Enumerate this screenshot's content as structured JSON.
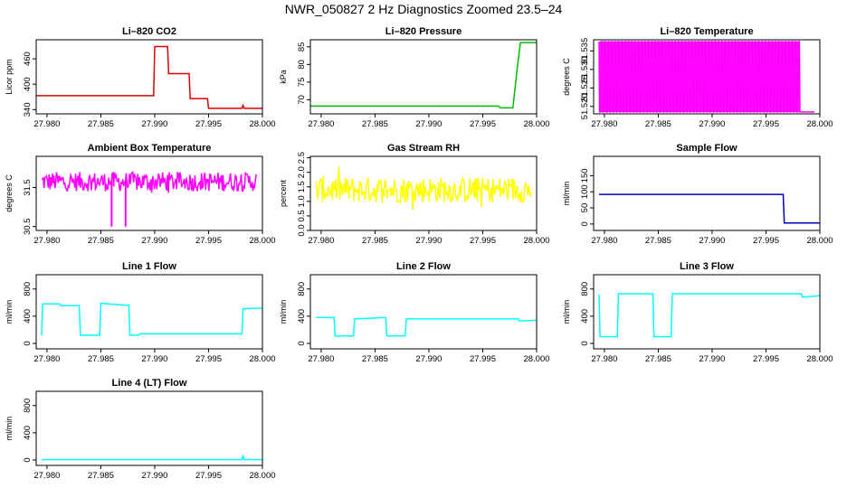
{
  "figure": {
    "title": "NWR_050827  2 Hz Diagnostics Zoomed 23.5–24"
  },
  "chart_data": [
    {
      "type": "line",
      "title": "Li–820 CO2",
      "ylabel": "Licor ppm",
      "color": "#dd0000",
      "xlim": [
        27.979,
        28.0
      ],
      "ylim": [
        330,
        505
      ],
      "xticks": [
        "27.980",
        "27.985",
        "27.990",
        "27.995",
        "28.000"
      ],
      "yticks": [
        340,
        400,
        460
      ],
      "ytick_labels": [
        "340",
        "400",
        "460"
      ],
      "series": [
        {
          "x": [
            27.979,
            27.9899,
            27.99,
            27.9912,
            27.9913,
            27.9932,
            27.9933,
            27.9949,
            27.995,
            27.9981,
            27.9982,
            27.9983,
            28.0
          ],
          "y": [
            373,
            373,
            489,
            489,
            425,
            425,
            366,
            366,
            343,
            343,
            350,
            343,
            343
          ]
        }
      ]
    },
    {
      "type": "line",
      "title": "Li–820 Pressure",
      "ylabel": "kPa",
      "color": "#00bb00",
      "xlim": [
        27.979,
        28.0
      ],
      "ylim": [
        66,
        87
      ],
      "xticks": [
        "27.980",
        "27.985",
        "27.990",
        "27.995",
        "28.000"
      ],
      "yticks": [
        70,
        75,
        80,
        85
      ],
      "ytick_labels": [
        "70",
        "75",
        "80",
        "85"
      ],
      "series": [
        {
          "x": [
            27.979,
            27.9965,
            27.9966,
            27.9978,
            27.9982,
            27.9985,
            27.9986,
            28.0
          ],
          "y": [
            68.2,
            68.2,
            67.7,
            67.7,
            79,
            86.2,
            86.2,
            86.2
          ]
        }
      ]
    },
    {
      "type": "line",
      "title": "Li–820 Temperature",
      "ylabel": "degrees C",
      "color": "#ff00ff",
      "xlim": [
        27.979,
        28.0
      ],
      "ylim": [
        51.518,
        51.538
      ],
      "xticks": [
        "27.980",
        "27.985",
        "27.990",
        "27.995",
        "28.000"
      ],
      "yticks": [
        51.52,
        51.525,
        51.53,
        51.535
      ],
      "ytick_labels": [
        "51.520",
        "51.525",
        "51.530",
        "51.535"
      ],
      "series": [
        {
          "name": "oscillating between two levels",
          "low": 51.5185,
          "high": 51.5375,
          "x_start": 27.9795,
          "x_end": 27.9981,
          "end_level": 51.5185
        }
      ]
    },
    {
      "type": "line",
      "title": "Ambient Box Temperature",
      "ylabel": "degrees C",
      "color": "#ff00ff",
      "xlim": [
        27.979,
        28.0
      ],
      "ylim": [
        30.4,
        32.3
      ],
      "xticks": [
        "27.980",
        "27.985",
        "27.990",
        "27.995",
        "28.000"
      ],
      "yticks": [
        30.5,
        31.5
      ],
      "ytick_labels": [
        "30.5",
        "31.5"
      ],
      "series": [
        {
          "name": "noisy",
          "center": 31.65,
          "noise": 0.25,
          "spikes": [
            [
              27.986,
              30.5
            ],
            [
              27.9873,
              30.5
            ]
          ]
        }
      ]
    },
    {
      "type": "line",
      "title": "Gas Stream RH",
      "ylabel": "percent",
      "color": "#ffff00",
      "xlim": [
        27.979,
        28.0
      ],
      "ylim": [
        0,
        2.55
      ],
      "xticks": [
        "27.980",
        "27.985",
        "27.990",
        "27.995",
        "28.000"
      ],
      "yticks": [
        0,
        0.5,
        1.0,
        1.5,
        2.0,
        2.5
      ],
      "ytick_labels": [
        "0.0",
        "0.5",
        "1.0",
        "1.5",
        "2.0",
        "2.5"
      ],
      "series": [
        {
          "name": "noisy",
          "center": 1.4,
          "noise": 0.45
        }
      ]
    },
    {
      "type": "line",
      "title": "Sample Flow",
      "ylabel": "ml/min",
      "color": "#0000bb",
      "xlim": [
        27.979,
        28.0
      ],
      "ylim": [
        -20,
        210
      ],
      "xticks": [
        "27.980",
        "27.985",
        "27.990",
        "27.995",
        "28.000"
      ],
      "yticks": [
        0,
        50,
        100,
        150
      ],
      "ytick_labels": [
        "0",
        "50",
        "100",
        "150"
      ],
      "series": [
        {
          "x": [
            27.9795,
            27.9966,
            27.9967,
            28.0
          ],
          "y": [
            92,
            92,
            3,
            3
          ]
        }
      ]
    },
    {
      "type": "line",
      "title": "Line 1 Flow",
      "ylabel": "ml/min",
      "color": "#00ffff",
      "xlim": [
        27.979,
        28.0
      ],
      "ylim": [
        -80,
        1010
      ],
      "xticks": [
        "27.980",
        "27.985",
        "27.990",
        "27.995",
        "28.000"
      ],
      "yticks": [
        0,
        400,
        800
      ],
      "ytick_labels": [
        "0",
        "400",
        "800"
      ],
      "series": [
        {
          "x": [
            27.9795,
            27.9796,
            27.9812,
            27.9813,
            27.983,
            27.9831,
            27.9849,
            27.985,
            27.9876,
            27.9877,
            27.9885,
            27.9886,
            27.9981,
            27.9982,
            28.0
          ],
          "y": [
            120,
            580,
            580,
            555,
            555,
            120,
            120,
            590,
            560,
            120,
            120,
            140,
            140,
            510,
            520
          ]
        }
      ]
    },
    {
      "type": "line",
      "title": "Line 2 Flow",
      "ylabel": "ml/min",
      "color": "#00ffff",
      "xlim": [
        27.979,
        28.0
      ],
      "ylim": [
        -80,
        1010
      ],
      "xticks": [
        "27.980",
        "27.985",
        "27.990",
        "27.995",
        "28.000"
      ],
      "yticks": [
        0,
        400,
        800
      ],
      "ytick_labels": [
        "0",
        "400",
        "800"
      ],
      "series": [
        {
          "x": [
            27.9795,
            27.9812,
            27.9813,
            27.983,
            27.9831,
            27.986,
            27.9861,
            27.9878,
            27.9879,
            27.9983,
            27.9984,
            28.0
          ],
          "y": [
            380,
            380,
            110,
            110,
            360,
            380,
            110,
            110,
            360,
            360,
            330,
            340
          ]
        }
      ]
    },
    {
      "type": "line",
      "title": "Line 3 Flow",
      "ylabel": "ml/min",
      "color": "#00ffff",
      "xlim": [
        27.979,
        28.0
      ],
      "ylim": [
        -80,
        1010
      ],
      "xticks": [
        "27.980",
        "27.985",
        "27.990",
        "27.995",
        "28.000"
      ],
      "yticks": [
        0,
        400,
        800
      ],
      "ytick_labels": [
        "0",
        "400",
        "800"
      ],
      "series": [
        {
          "x": [
            27.9795,
            27.9796,
            27.9812,
            27.9813,
            27.9845,
            27.9846,
            27.9862,
            27.9863,
            27.9983,
            27.9984,
            28.0
          ],
          "y": [
            720,
            100,
            100,
            730,
            730,
            100,
            100,
            730,
            730,
            680,
            700
          ]
        }
      ]
    },
    {
      "type": "line",
      "title": "Line 4 (LT) Flow",
      "ylabel": "ml/min",
      "color": "#00ffff",
      "xlim": [
        27.979,
        28.0
      ],
      "ylim": [
        -80,
        1010
      ],
      "xticks": [
        "27.980",
        "27.985",
        "27.990",
        "27.995",
        "28.000"
      ],
      "yticks": [
        0,
        400,
        800
      ],
      "ytick_labels": [
        "0",
        "400",
        "800"
      ],
      "series": [
        {
          "x": [
            27.9795,
            27.9981,
            27.9982,
            27.9983,
            28.0
          ],
          "y": [
            5,
            5,
            60,
            5,
            5
          ]
        }
      ]
    }
  ]
}
